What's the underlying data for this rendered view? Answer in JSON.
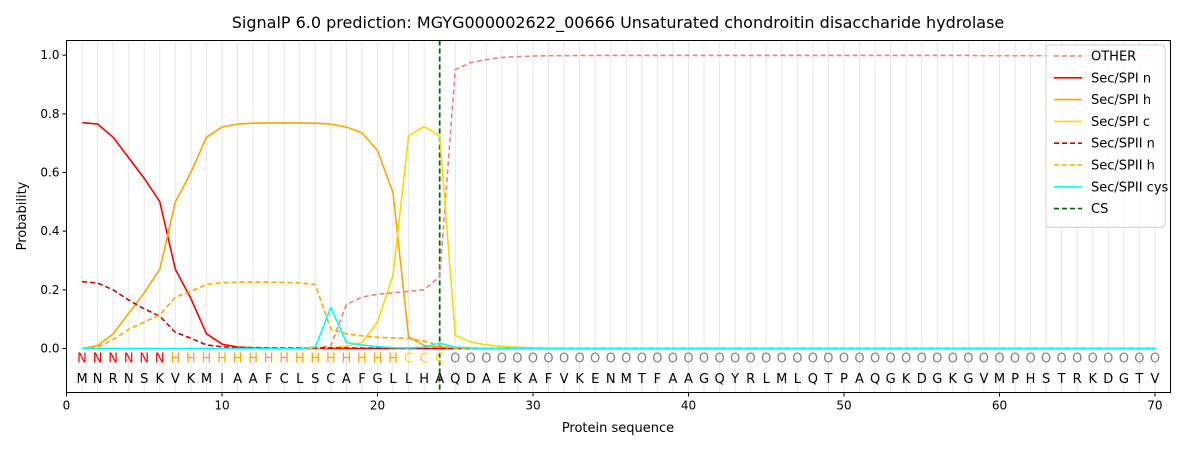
{
  "chart_data": {
    "type": "line",
    "title": "SignalP 6.0 prediction: MGYG000002622_00666 Unsaturated chondroitin disaccharide hydrolase",
    "xlabel": "Protein sequence",
    "ylabel": "Probability",
    "xlim": [
      0,
      71
    ],
    "ylim": [
      -0.15,
      1.05
    ],
    "x_ticks": [
      0,
      10,
      20,
      30,
      40,
      50,
      60,
      70
    ],
    "y_ticks": [
      0.0,
      0.2,
      0.4,
      0.6,
      0.8,
      1.0
    ],
    "grid": "vertical lines at every residue",
    "legend_position": "top-right",
    "cs_position": 24,
    "sequence": [
      "M",
      "N",
      "R",
      "N",
      "S",
      "K",
      "V",
      "K",
      "M",
      "I",
      "A",
      "A",
      "F",
      "C",
      "L",
      "S",
      "C",
      "A",
      "F",
      "G",
      "L",
      "L",
      "H",
      "A",
      "Q",
      "D",
      "A",
      "E",
      "K",
      "A",
      "F",
      "V",
      "K",
      "E",
      "N",
      "M",
      "T",
      "F",
      "A",
      "A",
      "G",
      "Q",
      "Y",
      "R",
      "L",
      "M",
      "L",
      "Q",
      "T",
      "P",
      "A",
      "Q",
      "G",
      "K",
      "D",
      "G",
      "K",
      "G",
      "V",
      "M",
      "P",
      "H",
      "S",
      "T",
      "R",
      "K",
      "D",
      "G",
      "T",
      "V"
    ],
    "labels": [
      "N",
      "N",
      "N",
      "N",
      "N",
      "N",
      "H",
      "H",
      "H",
      "H",
      "H",
      "H",
      "H",
      "H",
      "H",
      "H",
      "H",
      "H",
      "H",
      "H",
      "H",
      "C",
      "C",
      "C",
      "O",
      "O",
      "O",
      "O",
      "O",
      "O",
      "O",
      "O",
      "O",
      "O",
      "O",
      "O",
      "O",
      "O",
      "O",
      "O",
      "O",
      "O",
      "O",
      "O",
      "O",
      "O",
      "O",
      "O",
      "O",
      "O",
      "O",
      "O",
      "O",
      "O",
      "O",
      "O",
      "O",
      "O",
      "O",
      "O",
      "O",
      "O",
      "O",
      "O",
      "O",
      "O",
      "O",
      "O",
      "O",
      "O"
    ],
    "label_colors": {
      "N": "#ff0000",
      "H": "#ffa500",
      "C": "#ffd700",
      "O": "#808080"
    },
    "series": [
      {
        "name": "OTHER",
        "color": "#f08080",
        "dash": true,
        "values": [
          0,
          0,
          0,
          0,
          0,
          0,
          0,
          0,
          0,
          0,
          0,
          0,
          0,
          0,
          0,
          0,
          0.01,
          0.15,
          0.175,
          0.185,
          0.19,
          0.195,
          0.2,
          0.245,
          0.95,
          0.975,
          0.985,
          0.992,
          0.995,
          0.997,
          0.998,
          0.998,
          0.999,
          0.999,
          0.999,
          0.999,
          0.999,
          0.999,
          0.999,
          0.999,
          0.999,
          0.999,
          0.999,
          0.999,
          0.999,
          0.999,
          0.999,
          0.999,
          0.999,
          0.999,
          0.999,
          0.999,
          0.999,
          0.999,
          0.999,
          0.999,
          0.999,
          0.999,
          0.998,
          0.998,
          0.998,
          0.998,
          0.998,
          0.998,
          0.998,
          0.998,
          0.998,
          0.998,
          0.998,
          0.998
        ]
      },
      {
        "name": "Sec/SPI n",
        "color": "#ff0000",
        "dash": false,
        "values": [
          0.77,
          0.765,
          0.72,
          0.65,
          0.58,
          0.5,
          0.27,
          0.17,
          0.05,
          0.015,
          0.005,
          0.002,
          0.001,
          0,
          0,
          0,
          0,
          0,
          0,
          0,
          0,
          0,
          0,
          0,
          0,
          0,
          0,
          0,
          0,
          0,
          0,
          0,
          0,
          0,
          0,
          0,
          0,
          0,
          0,
          0,
          0,
          0,
          0,
          0,
          0,
          0,
          0,
          0,
          0,
          0,
          0,
          0,
          0,
          0,
          0,
          0,
          0,
          0,
          0,
          0,
          0,
          0,
          0,
          0,
          0,
          0,
          0,
          0,
          0,
          0
        ]
      },
      {
        "name": "Sec/SPI h",
        "color": "#ffa500",
        "dash": false,
        "values": [
          0,
          0.01,
          0.05,
          0.12,
          0.19,
          0.27,
          0.5,
          0.6,
          0.72,
          0.755,
          0.765,
          0.768,
          0.769,
          0.769,
          0.769,
          0.768,
          0.765,
          0.755,
          0.735,
          0.675,
          0.53,
          0.04,
          0.01,
          0.005,
          0,
          0,
          0,
          0,
          0,
          0,
          0,
          0,
          0,
          0,
          0,
          0,
          0,
          0,
          0,
          0,
          0,
          0,
          0,
          0,
          0,
          0,
          0,
          0,
          0,
          0,
          0,
          0,
          0,
          0,
          0,
          0,
          0,
          0,
          0,
          0,
          0,
          0,
          0,
          0,
          0,
          0,
          0,
          0,
          0,
          0
        ]
      },
      {
        "name": "Sec/SPI c",
        "color": "#ffd700",
        "dash": false,
        "values": [
          0,
          0,
          0,
          0,
          0,
          0,
          0,
          0,
          0,
          0,
          0,
          0,
          0,
          0,
          0,
          0.001,
          0.003,
          0.008,
          0.02,
          0.09,
          0.25,
          0.725,
          0.757,
          0.725,
          0.045,
          0.022,
          0.012,
          0.007,
          0.004,
          0.002,
          0.001,
          0,
          0,
          0,
          0,
          0,
          0,
          0,
          0,
          0,
          0,
          0,
          0,
          0,
          0,
          0,
          0,
          0,
          0,
          0,
          0,
          0,
          0,
          0,
          0,
          0,
          0,
          0,
          0,
          0,
          0,
          0,
          0,
          0,
          0,
          0,
          0,
          0,
          0,
          0
        ]
      },
      {
        "name": "Sec/SPII n",
        "color": "#cc0000",
        "dash": true,
        "values": [
          0.228,
          0.223,
          0.2,
          0.165,
          0.135,
          0.11,
          0.055,
          0.035,
          0.012,
          0.006,
          0.004,
          0.003,
          0.002,
          0.002,
          0.002,
          0.002,
          0.002,
          0.002,
          0.001,
          0.001,
          0,
          0,
          0,
          0,
          0,
          0,
          0,
          0,
          0,
          0,
          0,
          0,
          0,
          0,
          0,
          0,
          0,
          0,
          0,
          0,
          0,
          0,
          0,
          0,
          0,
          0,
          0,
          0,
          0,
          0,
          0,
          0,
          0,
          0,
          0,
          0,
          0,
          0,
          0,
          0,
          0,
          0,
          0,
          0,
          0,
          0,
          0,
          0,
          0,
          0
        ]
      },
      {
        "name": "Sec/SPII h",
        "color": "#ffa500",
        "dash": true,
        "values": [
          0,
          0.005,
          0.03,
          0.065,
          0.09,
          0.115,
          0.175,
          0.195,
          0.218,
          0.224,
          0.226,
          0.226,
          0.226,
          0.225,
          0.224,
          0.218,
          0.065,
          0.05,
          0.043,
          0.038,
          0.036,
          0.034,
          0.025,
          0.01,
          0,
          0,
          0,
          0,
          0,
          0,
          0,
          0,
          0,
          0,
          0,
          0,
          0,
          0,
          0,
          0,
          0,
          0,
          0,
          0,
          0,
          0,
          0,
          0,
          0,
          0,
          0,
          0,
          0,
          0,
          0,
          0,
          0,
          0,
          0,
          0,
          0,
          0,
          0,
          0,
          0,
          0,
          0,
          0,
          0,
          0
        ]
      },
      {
        "name": "Sec/SPII cys",
        "color": "#00ffff",
        "dash": false,
        "values": [
          0,
          0,
          0,
          0,
          0,
          0,
          0,
          0,
          0,
          0,
          0,
          0,
          0,
          0,
          0,
          0.005,
          0.14,
          0.02,
          0.012,
          0.006,
          0.003,
          0.002,
          0.005,
          0.018,
          0.005,
          0.002,
          0,
          0,
          0,
          0,
          0,
          0,
          0,
          0,
          0,
          0,
          0,
          0,
          0,
          0,
          0,
          0,
          0,
          0,
          0,
          0,
          0,
          0,
          0,
          0,
          0,
          0,
          0,
          0,
          0,
          0,
          0,
          0,
          0,
          0,
          0,
          0,
          0,
          0,
          0,
          0,
          0,
          0,
          0,
          0
        ]
      }
    ],
    "cs_series": {
      "name": "CS",
      "color": "#006400"
    }
  }
}
